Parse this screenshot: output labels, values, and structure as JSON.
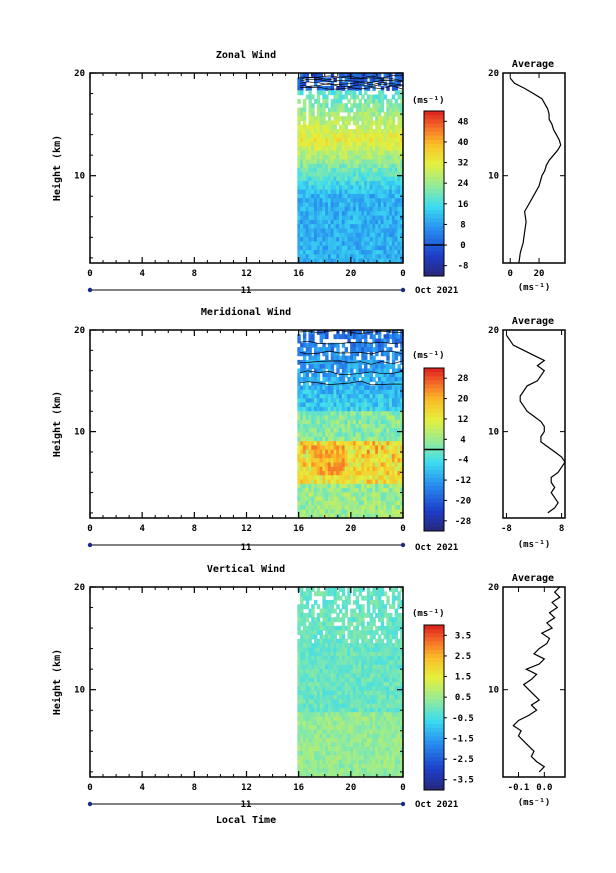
{
  "figure": {
    "x_axis_label": "Local Time",
    "date_label": "Oct 2021",
    "day_label": "11",
    "y_axis_label": "Height (km)",
    "average_title": "Average",
    "units_label": "(ms⁻¹)"
  },
  "chart_data": [
    {
      "type": "heatmap",
      "title": "Zonal Wind",
      "xlabel": "Local Time",
      "ylabel": "Height (km)",
      "xlim": [
        0,
        24
      ],
      "ylim": [
        1.5,
        20
      ],
      "x_ticks": [
        "0",
        "4",
        "8",
        "12",
        "16",
        "20",
        "0"
      ],
      "y_ticks": [
        "10",
        "20"
      ],
      "data_x_range": [
        15.9,
        24
      ],
      "colorbar": {
        "unit": "(ms⁻¹)",
        "tick_labels": [
          "-8",
          "0",
          "8",
          "16",
          "24",
          "32",
          "40",
          "48"
        ],
        "range": [
          -12,
          52
        ],
        "zero_contour": 0
      },
      "grid": false
    },
    {
      "type": "line",
      "title": "Average",
      "xlabel": "(ms⁻¹)",
      "ylabel": "Height (km)",
      "xlim": [
        -5,
        38
      ],
      "ylim": [
        1.5,
        20
      ],
      "x_ticks": [
        "0",
        "20"
      ],
      "y_ticks": [
        "10",
        "20"
      ],
      "x": [
        6,
        7,
        9,
        10,
        11,
        10,
        12,
        14,
        16,
        18,
        20,
        21,
        22,
        24,
        25,
        27,
        30,
        33,
        35,
        34,
        32,
        30,
        29,
        27,
        27,
        26,
        24,
        22,
        16,
        10,
        3,
        0
      ],
      "y": [
        1.5,
        2.5,
        3.5,
        4.5,
        5.5,
        6.5,
        7.0,
        7.5,
        8.0,
        8.5,
        9.0,
        9.5,
        10.0,
        10.5,
        11.0,
        11.5,
        12.0,
        12.5,
        13.0,
        13.5,
        14.0,
        14.5,
        15.0,
        15.5,
        16.0,
        16.5,
        17.0,
        17.5,
        18.0,
        18.5,
        19.0,
        19.5
      ]
    },
    {
      "type": "heatmap",
      "title": "Meridional Wind",
      "xlabel": "Local Time",
      "ylabel": "Height (km)",
      "xlim": [
        0,
        24
      ],
      "ylim": [
        1.5,
        20
      ],
      "x_ticks": [
        "0",
        "4",
        "8",
        "12",
        "16",
        "20",
        "0"
      ],
      "y_ticks": [
        "10",
        "20"
      ],
      "data_x_range": [
        15.9,
        24
      ],
      "colorbar": {
        "unit": "(ms⁻¹)",
        "tick_labels": [
          "-28",
          "-20",
          "-12",
          "-4",
          "4",
          "12",
          "20",
          "28"
        ],
        "range": [
          -32,
          32
        ],
        "zero_contour": 0
      },
      "grid": false
    },
    {
      "type": "line",
      "title": "Average",
      "xlabel": "(ms⁻¹)",
      "ylabel": "Height (km)",
      "xlim": [
        -9,
        9
      ],
      "ylim": [
        1.5,
        20
      ],
      "x_ticks": [
        "-8",
        "8"
      ],
      "y_ticks": [
        "10",
        "20"
      ],
      "x": [
        4,
        6,
        7,
        6,
        5,
        6,
        5,
        5,
        7,
        8,
        9,
        8,
        6,
        4,
        2,
        2,
        3,
        3,
        2,
        0,
        -2,
        -3,
        -4,
        -4,
        -3,
        -2,
        1,
        2,
        3,
        1,
        3,
        0,
        -3,
        -6,
        -7,
        -8
      ],
      "y": [
        2.0,
        2.5,
        3.0,
        3.5,
        4.0,
        4.5,
        5.0,
        5.5,
        6.0,
        6.5,
        7.0,
        7.5,
        8.0,
        8.5,
        9.0,
        9.5,
        10.0,
        10.5,
        11.0,
        11.5,
        12.0,
        12.5,
        13.0,
        13.5,
        14.0,
        14.5,
        15.0,
        15.5,
        16.0,
        16.5,
        17.0,
        17.5,
        18.0,
        18.5,
        19.0,
        19.5
      ]
    },
    {
      "type": "heatmap",
      "title": "Vertical Wind",
      "xlabel": "Local Time",
      "ylabel": "Height (km)",
      "xlim": [
        0,
        24
      ],
      "ylim": [
        1.5,
        20
      ],
      "x_ticks": [
        "0",
        "4",
        "8",
        "12",
        "16",
        "20",
        "0"
      ],
      "y_ticks": [
        "10",
        "20"
      ],
      "data_x_range": [
        15.9,
        24
      ],
      "colorbar": {
        "unit": "(ms⁻¹)",
        "tick_labels": [
          "-3.5",
          "-2.5",
          "-1.5",
          "-0.5",
          "0.5",
          "1.5",
          "2.5",
          "3.5"
        ],
        "range": [
          -4,
          4
        ]
      },
      "grid": false
    },
    {
      "type": "line",
      "title": "Average",
      "xlabel": "(ms⁻¹)",
      "ylabel": "Height (km)",
      "xlim": [
        -0.16,
        0.08
      ],
      "ylim": [
        1.5,
        20
      ],
      "x_ticks": [
        "-0.1",
        "0.0"
      ],
      "y_ticks": [
        "10",
        "20"
      ],
      "x": [
        -0.02,
        0.0,
        -0.03,
        -0.05,
        -0.04,
        -0.06,
        -0.08,
        -0.1,
        -0.09,
        -0.12,
        -0.1,
        -0.06,
        -0.03,
        -0.05,
        -0.02,
        -0.04,
        -0.06,
        -0.08,
        -0.05,
        -0.03,
        -0.07,
        -0.02,
        0.0,
        -0.04,
        -0.02,
        0.01,
        0.02,
        -0.01,
        0.03,
        0.01,
        0.04,
        0.02,
        0.05,
        0.03,
        0.06,
        0.04,
        0.06
      ],
      "y": [
        2.0,
        2.5,
        3.0,
        3.5,
        4.0,
        4.5,
        5.0,
        5.5,
        6.0,
        6.5,
        7.0,
        7.5,
        8.0,
        8.5,
        9.0,
        9.5,
        10.0,
        10.5,
        11.0,
        11.5,
        12.0,
        12.5,
        13.0,
        13.5,
        14.0,
        14.5,
        15.0,
        15.5,
        16.0,
        16.5,
        17.0,
        17.5,
        18.0,
        18.5,
        19.0,
        19.5,
        20.0
      ]
    }
  ]
}
